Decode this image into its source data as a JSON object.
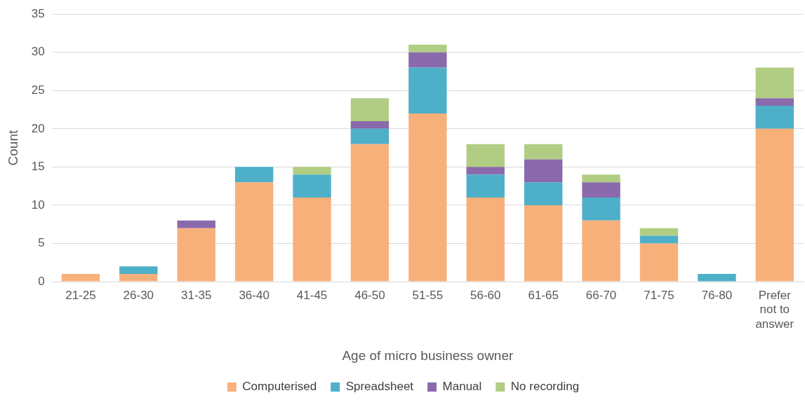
{
  "chart_data": {
    "type": "bar",
    "stacked": true,
    "xlabel": "Age of micro business owner",
    "ylabel": "Count",
    "categories": [
      "21-25",
      "26-30",
      "31-35",
      "36-40",
      "41-45",
      "46-50",
      "51-55",
      "56-60",
      "61-65",
      "66-70",
      "71-75",
      "76-80",
      "Prefer not to answer"
    ],
    "series": [
      {
        "name": "Computerised",
        "color": "#f8b07b",
        "values": [
          1,
          1,
          7,
          13,
          11,
          18,
          22,
          11,
          10,
          8,
          5,
          0,
          20
        ]
      },
      {
        "name": "Spreadsheet",
        "color": "#4eafc9",
        "values": [
          0,
          1,
          0,
          2,
          3,
          2,
          6,
          3,
          3,
          3,
          1,
          1,
          3
        ]
      },
      {
        "name": "Manual",
        "color": "#8a6aab",
        "values": [
          0,
          0,
          1,
          0,
          0,
          1,
          2,
          1,
          3,
          2,
          0,
          0,
          1
        ]
      },
      {
        "name": "No recording",
        "color": "#b1cd84",
        "values": [
          0,
          0,
          0,
          0,
          1,
          3,
          1,
          3,
          2,
          1,
          1,
          0,
          4
        ]
      }
    ],
    "ylim": [
      0,
      35
    ],
    "yticks": [
      0,
      5,
      10,
      15,
      20,
      25,
      30,
      35
    ],
    "grid": "y",
    "legend": "bottom"
  }
}
